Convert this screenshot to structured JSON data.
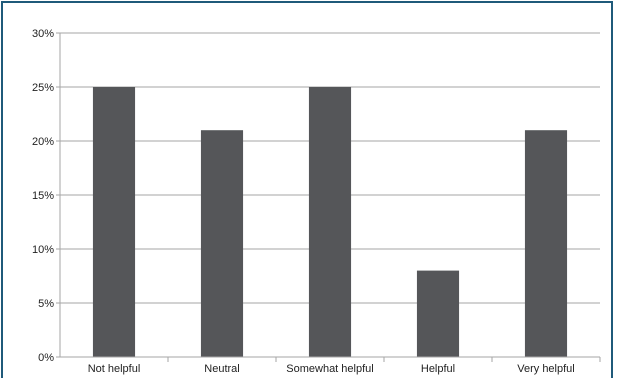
{
  "chart_data": {
    "type": "bar",
    "title": "",
    "xlabel": "",
    "ylabel": "",
    "categories": [
      "Not helpful",
      "Neutral",
      "Somewhat helpful",
      "Helpful",
      "Very helpful"
    ],
    "values": [
      25,
      21,
      25,
      8,
      21
    ],
    "ylim": [
      0,
      30
    ],
    "yticks": [
      0,
      5,
      10,
      15,
      20,
      25,
      30
    ],
    "ytick_labels": [
      "0%",
      "5%",
      "10%",
      "15%",
      "20%",
      "25%",
      "30%"
    ],
    "grid": true,
    "legend": "none",
    "bar_color": "#555659",
    "grid_color": "#a6a6a6",
    "frame_color": "#1f5a7a"
  }
}
